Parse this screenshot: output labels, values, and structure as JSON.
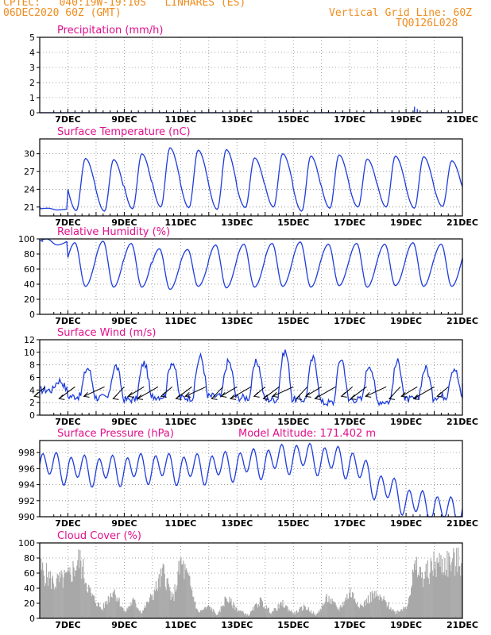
{
  "header": {
    "line1": "CPTEC:   040:19W-19:10S   LINHARES (ES)",
    "line2": "06DEC2020 60Z (GMT)",
    "vgrid": "Vertical Grid Line: 60Z",
    "code": "TQ0126L028"
  },
  "x_labels": [
    "7DEC",
    "9DEC",
    "11DEC",
    "13DEC",
    "15DEC",
    "17DEC",
    "19DEC",
    "21DEC"
  ],
  "colors": {
    "header": "#f08c1e",
    "title": "#e0108c",
    "line": "#1e3cdc",
    "cloud": "#a8a8a8",
    "wind_arrow": "#000000"
  },
  "panels": {
    "precip": {
      "title": "Precipitation (mm/h)",
      "ylim": [
        0,
        5
      ],
      "yticks": [
        "0",
        "1",
        "2",
        "3",
        "4",
        "5"
      ]
    },
    "temp": {
      "title": "Surface Temperature (nC)",
      "ylim": [
        19.5,
        32.5
      ],
      "yticks": [
        "21",
        "24",
        "27",
        "30"
      ]
    },
    "rh": {
      "title": "Relative Humidity (%)",
      "ylim": [
        0,
        100
      ],
      "yticks": [
        "0",
        "20",
        "40",
        "60",
        "80",
        "100"
      ]
    },
    "wind": {
      "title": "Surface Wind (m/s)",
      "ylim": [
        0,
        12
      ],
      "yticks": [
        "0",
        "2",
        "4",
        "6",
        "8",
        "10",
        "12"
      ]
    },
    "pres": {
      "title": "Surface Pressure (hPa)",
      "altitude": "Model Altitude: 171.402 m",
      "ylim": [
        990,
        999.5
      ],
      "yticks": [
        "990",
        "992",
        "994",
        "996",
        "998"
      ]
    },
    "cloud": {
      "title": "Cloud Cover (%)",
      "ylim": [
        0,
        100
      ],
      "yticks": [
        "0",
        "20",
        "40",
        "60",
        "80",
        "100"
      ]
    }
  },
  "chart_data": [
    {
      "type": "bar",
      "title": "Precipitation (mm/h)",
      "ylabel": "mm/h",
      "ylim": [
        0,
        5
      ],
      "grid": true,
      "x_range_days": [
        "6DEC",
        "21DEC"
      ],
      "points": [
        [
          9.4,
          0.03
        ],
        [
          10.4,
          0.05
        ],
        [
          10.9,
          0.06
        ],
        [
          11.3,
          0.04
        ],
        [
          12.5,
          0.05
        ],
        [
          13.4,
          0.03
        ],
        [
          14.9,
          0.04
        ],
        [
          16.2,
          0.04
        ],
        [
          17.8,
          0.05
        ],
        [
          19.3,
          0.4
        ],
        [
          19.4,
          0.25
        ],
        [
          19.6,
          0.05
        ]
      ]
    },
    {
      "type": "line",
      "title": "Surface Temperature (nC)",
      "ylabel": "nC",
      "ylim": [
        19.5,
        32.5
      ],
      "grid": true,
      "base": 21.5,
      "daily_max": [
        20.5,
        29.2,
        29.0,
        30.0,
        31.0,
        30.6,
        30.7,
        29.3,
        30.0,
        29.6,
        29.8,
        29.1,
        29.6,
        29.5,
        28.8,
        29.3
      ],
      "daily_min": [
        20.8,
        20.4,
        20.3,
        20.7,
        21.0,
        20.9,
        20.6,
        20.9,
        21.0,
        20.3,
        20.8,
        21.0,
        21.0,
        20.8,
        21.1,
        21.1
      ]
    },
    {
      "type": "line",
      "title": "Relative Humidity (%)",
      "ylabel": "%",
      "ylim": [
        0,
        100
      ],
      "grid": true,
      "daily_max": [
        100,
        95,
        97,
        94,
        87,
        86,
        92,
        93,
        94,
        96,
        93,
        94,
        93,
        95,
        93,
        94
      ],
      "daily_min": [
        92,
        37,
        36,
        36,
        33,
        37,
        35,
        36,
        37,
        36,
        38,
        36,
        38,
        37,
        37,
        37
      ]
    },
    {
      "type": "line",
      "title": "Surface Wind (m/s)",
      "ylabel": "m/s",
      "ylim": [
        0,
        12
      ],
      "grid": true,
      "daily_max": [
        5.5,
        7.5,
        7.8,
        8.3,
        8.5,
        9.3,
        8.5,
        8.5,
        10.2,
        9.0,
        9.0,
        8.0,
        8.5,
        7.5,
        7.5,
        8.0
      ],
      "daily_min": [
        4.0,
        3.0,
        2.8,
        2.5,
        3.0,
        2.8,
        3.0,
        2.8,
        2.5,
        2.5,
        2.0,
        2.5,
        2.2,
        2.5,
        3.0,
        3.0
      ]
    },
    {
      "type": "line",
      "title": "Surface Pressure (hPa)",
      "ylabel": "hPa",
      "ylim": [
        990,
        999.5
      ],
      "grid": true,
      "trend": [
        [
          6.0,
          996.5
        ],
        [
          7.0,
          996.0
        ],
        [
          8.0,
          995.8
        ],
        [
          9.0,
          995.9
        ],
        [
          10.0,
          996.2
        ],
        [
          11.0,
          996.0
        ],
        [
          12.0,
          996.1
        ],
        [
          13.0,
          996.5
        ],
        [
          14.0,
          996.8
        ],
        [
          15.0,
          997.5
        ],
        [
          16.0,
          997.2
        ],
        [
          17.0,
          996.8
        ],
        [
          17.5,
          995.5
        ],
        [
          18.0,
          993.8
        ],
        [
          18.5,
          993.2
        ],
        [
          19.0,
          992.0
        ],
        [
          19.5,
          991.5
        ],
        [
          20.0,
          991.2
        ],
        [
          20.5,
          990.6
        ],
        [
          21.0,
          991.0
        ]
      ]
    },
    {
      "type": "area",
      "title": "Cloud Cover (%)",
      "ylabel": "%",
      "ylim": [
        0,
        100
      ],
      "grid": true,
      "envelope": [
        [
          6.0,
          85
        ],
        [
          6.5,
          60
        ],
        [
          7.0,
          70
        ],
        [
          7.4,
          100
        ],
        [
          7.8,
          40
        ],
        [
          8.2,
          15
        ],
        [
          8.6,
          50
        ],
        [
          9.0,
          10
        ],
        [
          9.3,
          30
        ],
        [
          9.6,
          10
        ],
        [
          10.0,
          40
        ],
        [
          10.4,
          80
        ],
        [
          10.7,
          30
        ],
        [
          11.0,
          95
        ],
        [
          11.3,
          60
        ],
        [
          11.6,
          10
        ],
        [
          12.0,
          20
        ],
        [
          12.3,
          5
        ],
        [
          12.6,
          35
        ],
        [
          13.0,
          15
        ],
        [
          13.4,
          5
        ],
        [
          13.8,
          30
        ],
        [
          14.2,
          10
        ],
        [
          14.6,
          25
        ],
        [
          15.0,
          8
        ],
        [
          15.4,
          20
        ],
        [
          15.8,
          5
        ],
        [
          16.2,
          35
        ],
        [
          16.6,
          15
        ],
        [
          17.0,
          45
        ],
        [
          17.4,
          20
        ],
        [
          17.8,
          40
        ],
        [
          18.2,
          30
        ],
        [
          18.6,
          10
        ],
        [
          19.0,
          20
        ],
        [
          19.3,
          85
        ],
        [
          19.6,
          70
        ],
        [
          20.0,
          92
        ],
        [
          20.5,
          95
        ],
        [
          21.0,
          95
        ]
      ]
    }
  ]
}
